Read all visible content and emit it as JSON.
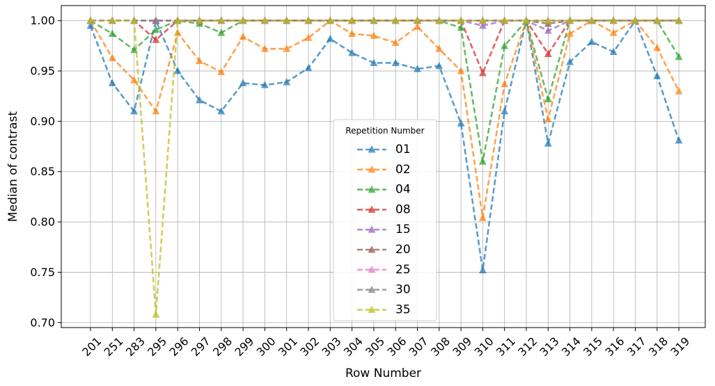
{
  "chart_data": {
    "type": "line",
    "title": "",
    "xlabel": "Row Number",
    "ylabel": "Median of contrast",
    "categories": [
      "201",
      "251",
      "283",
      "295",
      "296",
      "297",
      "298",
      "299",
      "300",
      "301",
      "302",
      "303",
      "304",
      "305",
      "306",
      "307",
      "308",
      "309",
      "310",
      "311",
      "312",
      "313",
      "314",
      "315",
      "316",
      "317",
      "318",
      "319"
    ],
    "ylim": [
      0.695,
      1.015
    ],
    "yticks": [
      "0.70",
      "0.75",
      "0.80",
      "0.85",
      "0.90",
      "0.95",
      "1.00"
    ],
    "grid": true,
    "legend": {
      "title": "Repetition Number",
      "placement": "lower-center"
    },
    "series": [
      {
        "name": "01",
        "color": "#1f77b4",
        "values": [
          0.995,
          0.938,
          0.91,
          1.0,
          0.95,
          0.921,
          0.91,
          0.938,
          0.936,
          0.939,
          0.953,
          0.982,
          0.968,
          0.958,
          0.958,
          0.952,
          0.955,
          0.898,
          0.752,
          0.91,
          1.0,
          0.878,
          0.959,
          0.979,
          0.969,
          1.0,
          0.945,
          0.881
        ]
      },
      {
        "name": "02",
        "color": "#ff7f0e",
        "values": [
          1.0,
          0.963,
          0.941,
          0.91,
          0.988,
          0.96,
          0.949,
          0.984,
          0.972,
          0.972,
          0.983,
          1.0,
          0.987,
          0.985,
          0.978,
          0.994,
          0.972,
          0.95,
          0.804,
          0.937,
          1.0,
          0.902,
          0.987,
          1.0,
          0.988,
          1.0,
          0.973,
          0.93
        ]
      },
      {
        "name": "04",
        "color": "#2ca02c",
        "values": [
          1.0,
          0.987,
          0.971,
          0.991,
          1.0,
          0.997,
          0.988,
          1.0,
          1.0,
          1.0,
          1.0,
          1.0,
          1.0,
          1.0,
          1.0,
          1.0,
          1.0,
          0.993,
          0.86,
          0.975,
          1.0,
          0.922,
          1.0,
          1.0,
          1.0,
          1.0,
          1.0,
          0.964
        ]
      },
      {
        "name": "08",
        "color": "#d62728",
        "values": [
          1.0,
          1.0,
          1.0,
          0.981,
          1.0,
          1.0,
          1.0,
          1.0,
          1.0,
          1.0,
          1.0,
          1.0,
          1.0,
          1.0,
          1.0,
          1.0,
          1.0,
          1.0,
          0.948,
          1.0,
          1.0,
          0.967,
          1.0,
          1.0,
          1.0,
          1.0,
          1.0,
          1.0
        ]
      },
      {
        "name": "15",
        "color": "#9467bd",
        "values": [
          1.0,
          1.0,
          1.0,
          1.0,
          1.0,
          1.0,
          1.0,
          1.0,
          1.0,
          1.0,
          1.0,
          1.0,
          1.0,
          1.0,
          1.0,
          1.0,
          1.0,
          1.0,
          0.995,
          1.0,
          1.0,
          0.99,
          1.0,
          1.0,
          1.0,
          1.0,
          1.0,
          1.0
        ]
      },
      {
        "name": "20",
        "color": "#8c564b",
        "values": [
          1.0,
          1.0,
          1.0,
          1.0,
          1.0,
          1.0,
          1.0,
          1.0,
          1.0,
          1.0,
          1.0,
          1.0,
          1.0,
          1.0,
          1.0,
          1.0,
          1.0,
          1.0,
          1.0,
          1.0,
          1.0,
          0.997,
          1.0,
          1.0,
          1.0,
          1.0,
          1.0,
          1.0
        ]
      },
      {
        "name": "25",
        "color": "#e377c2",
        "values": [
          1.0,
          1.0,
          1.0,
          1.0,
          1.0,
          1.0,
          1.0,
          1.0,
          1.0,
          1.0,
          1.0,
          1.0,
          1.0,
          1.0,
          1.0,
          1.0,
          1.0,
          1.0,
          1.0,
          1.0,
          1.0,
          1.0,
          1.0,
          1.0,
          1.0,
          1.0,
          1.0,
          1.0
        ]
      },
      {
        "name": "30",
        "color": "#7f7f7f",
        "values": [
          1.0,
          1.0,
          1.0,
          1.0,
          1.0,
          1.0,
          1.0,
          1.0,
          1.0,
          1.0,
          1.0,
          1.0,
          1.0,
          1.0,
          1.0,
          1.0,
          1.0,
          1.0,
          1.0,
          1.0,
          1.0,
          1.0,
          1.0,
          1.0,
          1.0,
          1.0,
          1.0,
          1.0
        ]
      },
      {
        "name": "35",
        "color": "#bcbd22",
        "values": [
          1.0,
          1.0,
          1.0,
          0.708,
          1.0,
          1.0,
          1.0,
          1.0,
          1.0,
          1.0,
          1.0,
          1.0,
          1.0,
          1.0,
          1.0,
          1.0,
          1.0,
          1.0,
          1.0,
          1.0,
          1.0,
          1.0,
          1.0,
          1.0,
          1.0,
          1.0,
          1.0,
          1.0
        ]
      }
    ]
  }
}
